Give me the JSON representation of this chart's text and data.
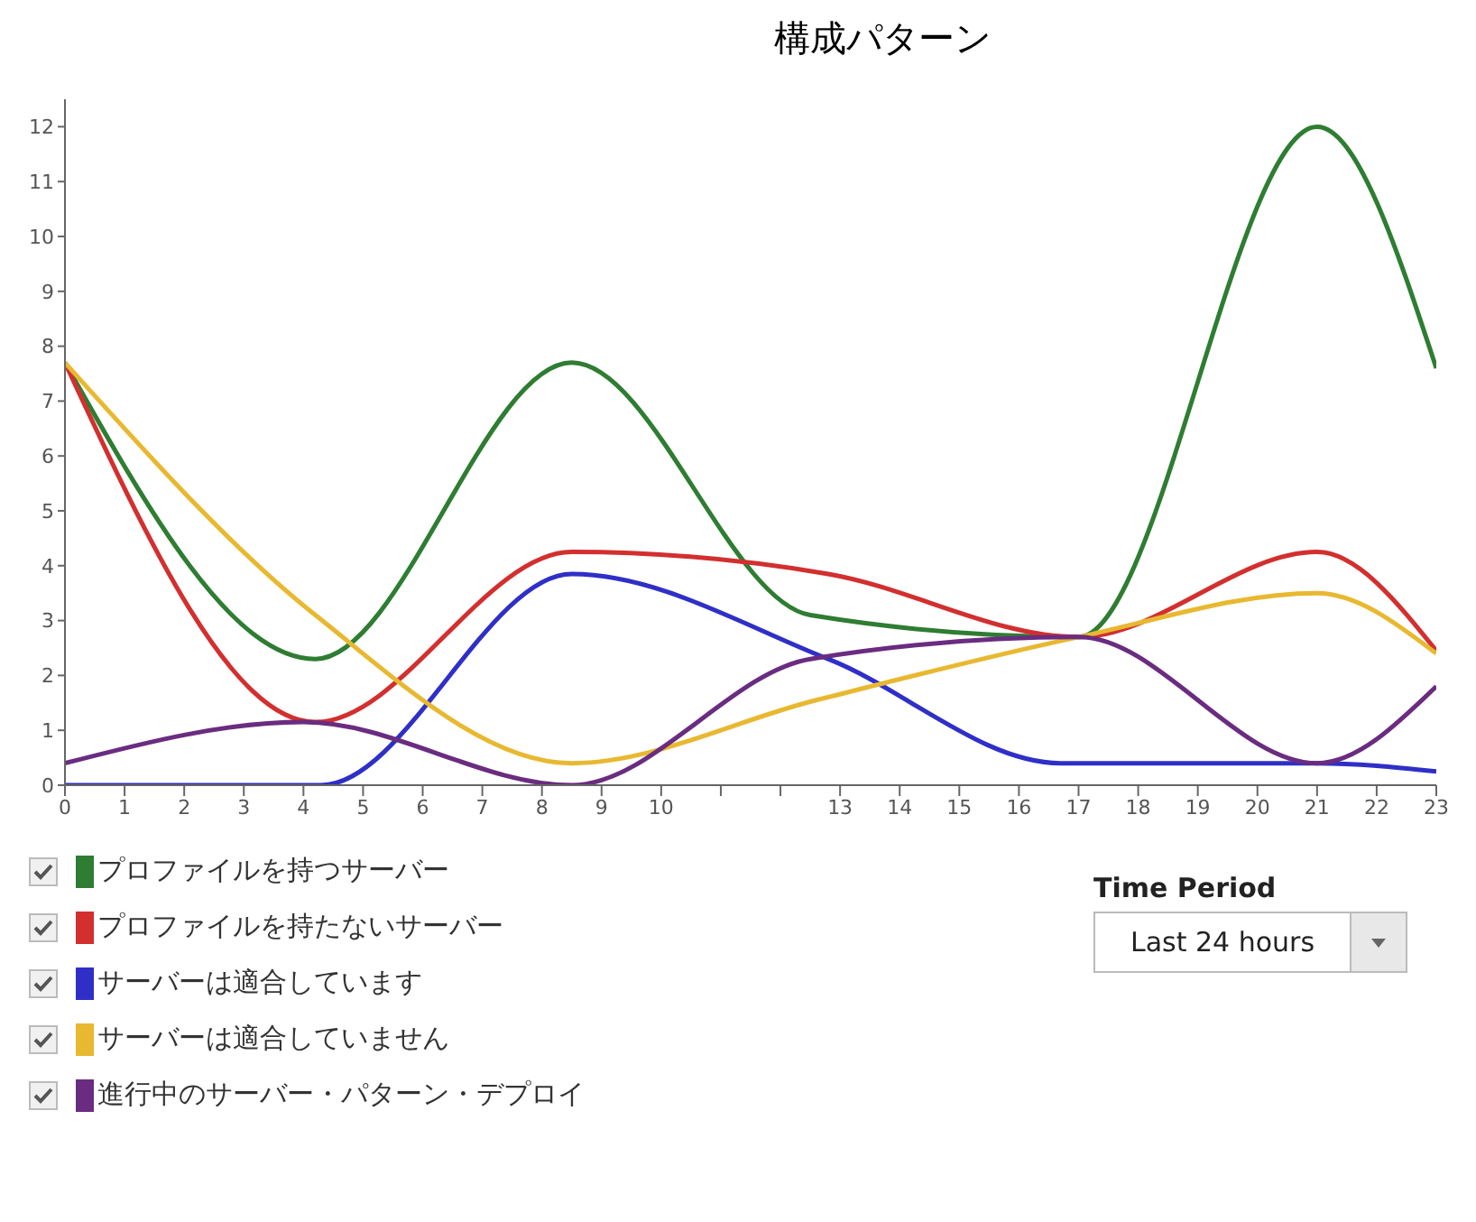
{
  "chart_data": {
    "type": "line",
    "title": "構成パターン",
    "annotations": [
      "Time Period",
      "Last 24 hours"
    ],
    "xlim": [
      0,
      23
    ],
    "xticks": [
      0,
      1,
      2,
      3,
      4,
      5,
      6,
      7,
      8,
      9,
      10,
      {
        "value": 11,
        "label": null
      },
      {
        "value": 12,
        "label": null
      },
      13,
      14,
      15,
      16,
      17,
      18,
      19,
      20,
      21,
      22,
      23
    ],
    "ylim": [
      0,
      12.5
    ],
    "yticks": [
      0,
      1,
      2,
      3,
      4,
      5,
      6,
      7,
      8,
      9,
      10,
      11,
      12
    ],
    "grid": false,
    "legend": "bottom left",
    "marker": "none",
    "line_style": "solid",
    "series": [
      {
        "name": "プロファイルを持つサーバー",
        "color": "#2e7d32",
        "x": [
          0,
          4.2,
          8.5,
          12.5,
          17,
          21,
          23
        ],
        "values": [
          7.7,
          2.3,
          7.7,
          3.1,
          2.7,
          12,
          7.6
        ]
      },
      {
        "name": "プロファイルを持たないサーバー",
        "color": "#d32f2f",
        "x": [
          0,
          4.2,
          8.5,
          12.8,
          17,
          21,
          23
        ],
        "values": [
          7.7,
          1.15,
          4.25,
          3.85,
          2.7,
          4.25,
          2.45
        ]
      },
      {
        "name": "サーバーは適合しています",
        "color": "#2f2fc8",
        "x": [
          0,
          4.3,
          8.5,
          12.8,
          16.7,
          21,
          23
        ],
        "values": [
          0,
          0,
          3.85,
          2.3,
          0.4,
          0.4,
          0.25
        ]
      },
      {
        "name": "サーバーは適合していません",
        "color": "#e8b830",
        "x": [
          0,
          4.2,
          8.5,
          12.6,
          17,
          21,
          23
        ],
        "values": [
          7.7,
          3.1,
          0.4,
          1.55,
          2.7,
          3.5,
          2.4
        ]
      },
      {
        "name": "進行中のサーバー・パターン・デプロイ",
        "color": "#6a2c80",
        "x": [
          0,
          4,
          8.5,
          12.5,
          17,
          21,
          23
        ],
        "values": [
          0.4,
          1.15,
          0,
          2.3,
          2.7,
          0.4,
          1.8
        ]
      }
    ]
  }
}
